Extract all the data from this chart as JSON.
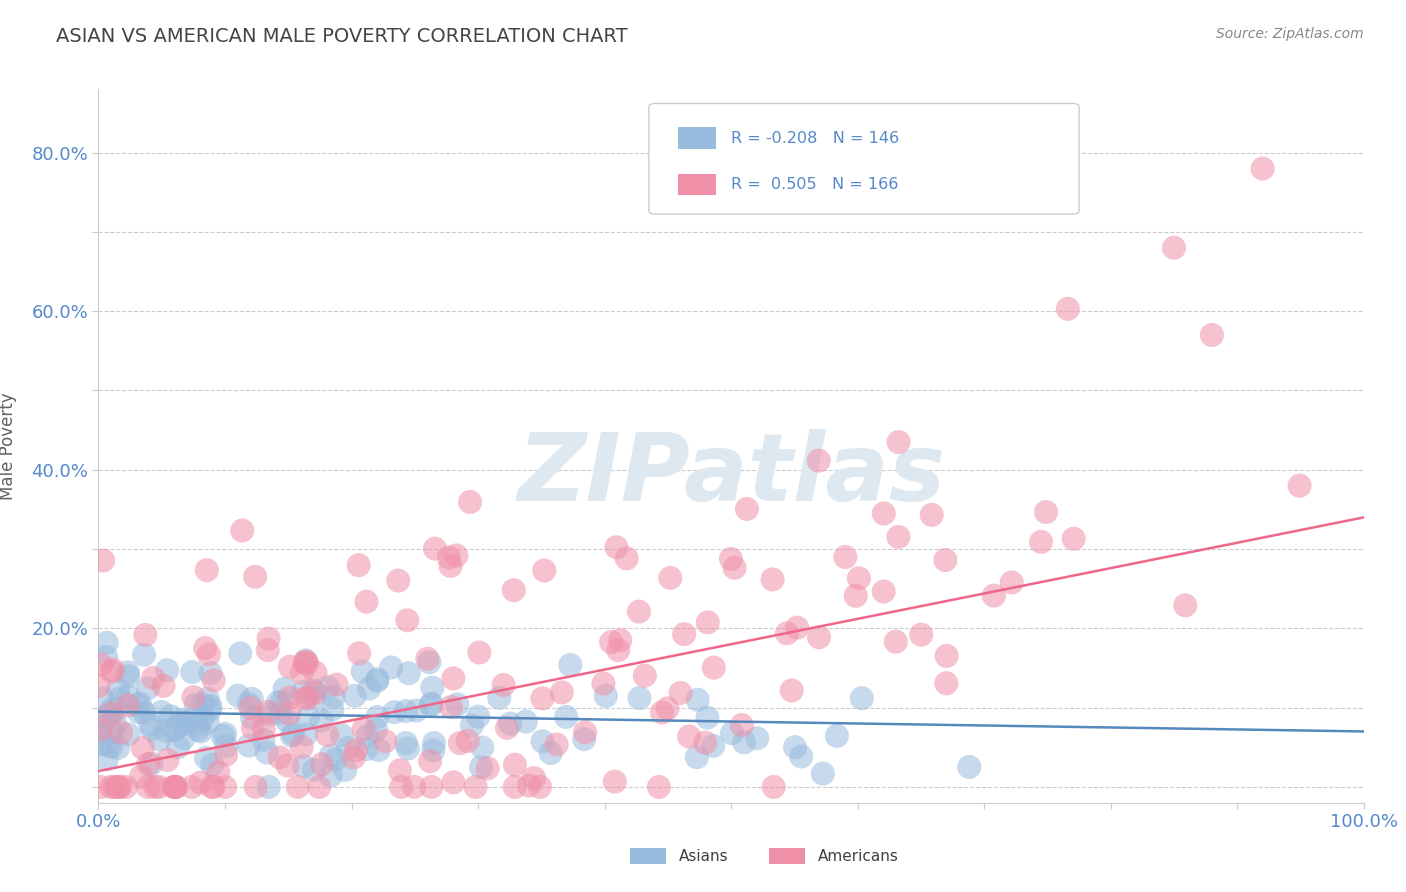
{
  "title": "ASIAN VS AMERICAN MALE POVERTY CORRELATION CHART",
  "source": "Source: ZipAtlas.com",
  "ylabel": "Male Poverty",
  "xlim": [
    0.0,
    1.0
  ],
  "ylim": [
    -0.02,
    0.88
  ],
  "asian_R": -0.208,
  "asian_N": 146,
  "american_R": 0.505,
  "american_N": 166,
  "asian_color": "#99bbdd",
  "american_color": "#f090a8",
  "asian_line_color": "#5588bb",
  "american_line_color": "#ee6688",
  "watermark_color": "#dde8f0",
  "background_color": "#ffffff",
  "grid_color": "#cccccc",
  "title_color": "#444444",
  "axis_label_color": "#606060",
  "tick_label_color": "#5588cc",
  "asian_slope": -0.025,
  "asian_intercept": 0.095,
  "american_slope": 0.32,
  "american_intercept": 0.02
}
